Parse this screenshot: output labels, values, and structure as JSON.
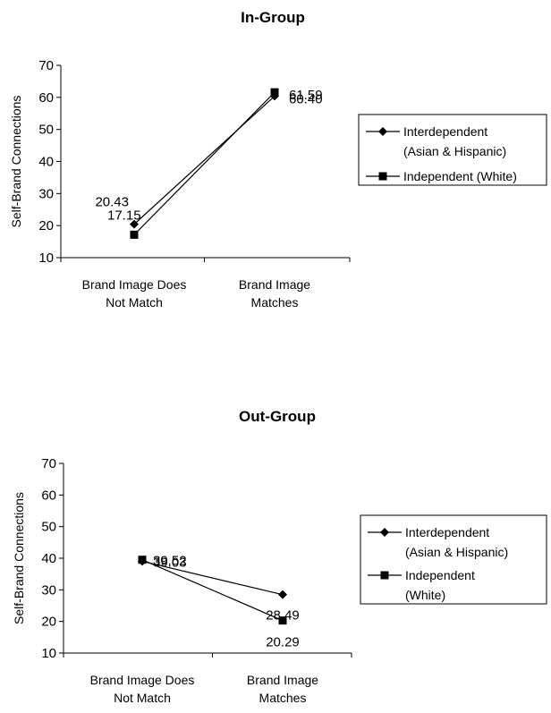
{
  "chart_data": [
    {
      "type": "line",
      "title": "In-Group",
      "xlabel": "",
      "ylabel": "Self-Brand Connections",
      "ylim": [
        10,
        70
      ],
      "yticks": [
        "10",
        "20",
        "30",
        "40",
        "50",
        "60",
        "70"
      ],
      "categories": [
        "Brand Image Does Not Match",
        "Brand Image Matches"
      ],
      "category_lines": [
        [
          "Brand Image Does",
          "Not Match"
        ],
        [
          "Brand Image",
          "Matches"
        ]
      ],
      "series": [
        {
          "name": "Interdependent (Asian & Hispanic)",
          "legend_lines": [
            "Interdependent",
            "(Asian & Hispanic)"
          ],
          "marker": "diamond",
          "values": [
            20.43,
            60.4
          ],
          "labels": [
            "20.43",
            "60.40"
          ]
        },
        {
          "name": "Independent (White)",
          "legend_lines": [
            "Independent (White)"
          ],
          "marker": "square",
          "values": [
            17.15,
            61.59
          ],
          "labels": [
            "17.15",
            "61.59"
          ]
        }
      ],
      "legend": "right",
      "grid": false
    },
    {
      "type": "line",
      "title": "Out-Group",
      "xlabel": "",
      "ylabel": "Self-Brand Connections",
      "ylim": [
        10,
        70
      ],
      "yticks": [
        "10",
        "20",
        "30",
        "40",
        "50",
        "60",
        "70"
      ],
      "categories": [
        "Brand Image Does Not Match",
        "Brand Image Matches"
      ],
      "category_lines": [
        [
          "Brand Image Does",
          "Not Match"
        ],
        [
          "Brand Image",
          "Matches"
        ]
      ],
      "series": [
        {
          "name": "Interdependent (Asian & Hispanic)",
          "legend_lines": [
            "Interdependent",
            "(Asian & Hispanic)"
          ],
          "marker": "diamond",
          "values": [
            39.03,
            28.49
          ],
          "labels": [
            "39.03",
            "28.49"
          ]
        },
        {
          "name": "Independent (White)",
          "legend_lines": [
            "Independent",
            "(White)"
          ],
          "marker": "square",
          "values": [
            39.52,
            20.29
          ],
          "labels": [
            "39.52",
            "20.29"
          ]
        }
      ],
      "legend": "right",
      "grid": false
    }
  ]
}
